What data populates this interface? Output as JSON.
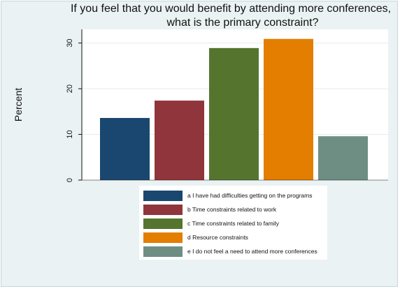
{
  "chart_data": {
    "type": "bar",
    "title": [
      "If you feel that you would benefit by attending more conferences,",
      "what is the primary constraint?"
    ],
    "ylabel": "Percent",
    "xlabel": "",
    "ylim": [
      0,
      33
    ],
    "yticks": [
      0,
      10,
      20,
      30
    ],
    "grid": true,
    "legend_position": "bottom",
    "categories": [
      "a I have had difficulties getting on the programs",
      "b Time constraints related to work",
      "c Time constraints related to family",
      "d Resource constraints",
      "e I do not feel a need to attend more conferences"
    ],
    "values": [
      13.6,
      17.4,
      28.9,
      30.9,
      9.6
    ],
    "colors": [
      "#1a476f",
      "#90353b",
      "#55752f",
      "#e37e00",
      "#6e8e84"
    ]
  }
}
